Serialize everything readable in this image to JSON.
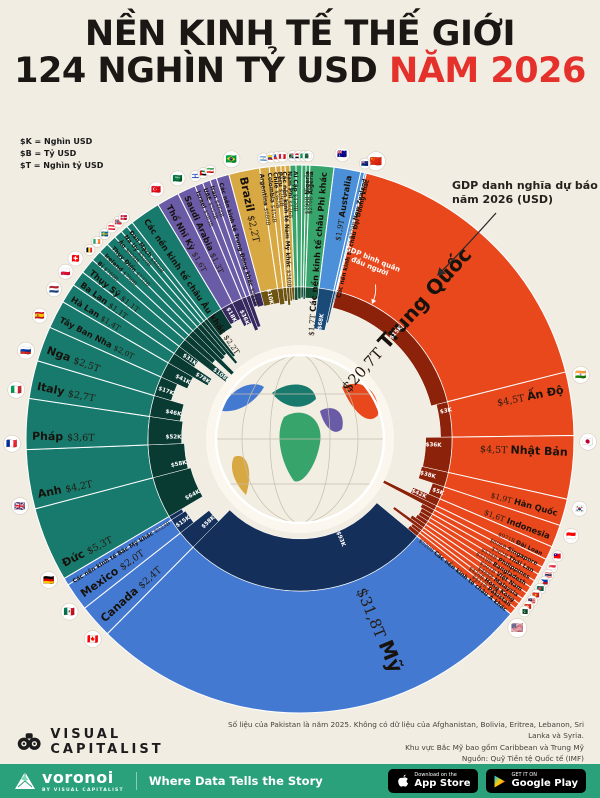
{
  "title": {
    "line1": "NỀN KINH TẾ THẾ GIỚI",
    "line2_black": "124 NGHÌN TỶ USD",
    "line2_red": "NĂM 2026"
  },
  "legend": {
    "lines": [
      "$K = Nghìn USD",
      "$B = Tỷ USD",
      "$T = Nghìn tỷ USD"
    ]
  },
  "annotations": {
    "gdp_note": "GDP danh nghĩa dự báo năm 2026 (USD)",
    "percap_note": "GDP bình quân đầu người"
  },
  "footer": {
    "brand": "VISUAL CAPITALIST",
    "notes": [
      "Số liệu của Pakistan là năm 2025. Không có dữ liệu của Afghanistan, Bolivia, Eritrea, Lebanon, Sri Lanka và Syria.",
      "Khu vực Bắc Mỹ bao gồm Caribbean và Trung Mỹ",
      "Nguồn: Quỹ Tiền tệ Quốc tế (IMF)"
    ]
  },
  "bottom_bar": {
    "brand": "voronoi",
    "byline": "BY VISUAL CAPITALIST",
    "slogan": "Where Data Tells the Story",
    "appstore": {
      "top": "Download on the",
      "bottom": "App Store"
    },
    "gplay": {
      "top": "GET IT ON",
      "bottom": "Google Play"
    }
  },
  "chart_data": {
    "type": "sunburst",
    "title": "Nền kinh tế thế giới 124 nghìn tỷ USD năm 2026",
    "total_display": "124 nghìn tỷ USD",
    "outer_ring_meaning": "GDP danh nghĩa dự báo năm 2026 (USD)",
    "inner_ring_meaning": "GDP bình quân đầu người",
    "units": {
      "K": "Nghìn USD",
      "B": "Tỷ USD",
      "T": "Nghìn tỷ USD"
    },
    "start_angle": 14,
    "regions": [
      {
        "id": "asia",
        "color": "#E8481C",
        "dark": "#8C2209",
        "countries": [
          {
            "id": "trung-quoc",
            "name": "Trung Quốc",
            "value": "$20,7T",
            "gdp": 20.7,
            "percap": "$15K",
            "pc": 15,
            "flag": "🇨🇳",
            "tier": 0
          },
          {
            "id": "an-do",
            "name": "Ấn Độ",
            "value": "$4,5T",
            "gdp": 4.5,
            "percap": "$3K",
            "pc": 3,
            "flag": "🇮🇳",
            "tier": 1
          },
          {
            "id": "nhat-ban",
            "name": "Nhật Bản",
            "value": "$4,5T",
            "gdp": 4.5,
            "percap": "$36K",
            "pc": 36,
            "flag": "🇯🇵",
            "tier": 1
          },
          {
            "id": "han-quoc",
            "name": "Hàn Quốc",
            "value": "$1,9T",
            "gdp": 1.9,
            "percap": "$38K",
            "pc": 38,
            "flag": "🇰🇷",
            "tier": 2
          },
          {
            "id": "indonesia",
            "name": "Indonesia",
            "value": "$1,6T",
            "gdp": 1.6,
            "percap": "$5K",
            "pc": 5,
            "flag": "🇮🇩",
            "tier": 2
          },
          {
            "id": "dai-loan",
            "name": "Đài Loan",
            "value": "$971B",
            "gdp": 0.971,
            "percap": "$42K",
            "pc": 42,
            "flag": "🇹🇼",
            "tier": 3
          },
          {
            "id": "singapore",
            "name": "Singapore",
            "value": "$606B",
            "gdp": 0.606,
            "pc": 113,
            "flag": "🇸🇬",
            "tier": 3
          },
          {
            "id": "thai-lan",
            "name": "Thái Lan",
            "value": "$562B",
            "gdp": 0.562,
            "pc": 8,
            "flag": "🇹🇭",
            "tier": 3
          },
          {
            "id": "philippines",
            "name": "Philippines",
            "value": "$534B",
            "gdp": 0.534,
            "pc": 4,
            "flag": "🇵🇭",
            "tier": 3
          },
          {
            "id": "bangladesh",
            "name": "Bangladesh",
            "value": "$519B",
            "gdp": 0.519,
            "pc": 3,
            "flag": "🇧🇩",
            "tier": 3
          },
          {
            "id": "viet-nam",
            "name": "Việt Nam",
            "value": "$501B",
            "gdp": 0.501,
            "pc": 5,
            "flag": "🇻🇳",
            "tier": 3
          },
          {
            "id": "malaysia",
            "name": "Malaysia",
            "value": "$488B",
            "gdp": 0.488,
            "pc": 14,
            "flag": "🇲🇾",
            "tier": 3
          },
          {
            "id": "hong-kong",
            "name": "Hong Kong",
            "value": "$426B",
            "gdp": 0.426,
            "pc": 57,
            "flag": "🇭🇰",
            "tier": 3
          },
          {
            "id": "pakistan",
            "name": "Pakistan",
            "value": "$411B",
            "gdp": 0.411,
            "pc": 2,
            "flag": "🇵🇰",
            "tier": 3
          },
          {
            "id": "asia-khac",
            "name": "Các nền kinh tế châu Á khác",
            "value": "$520B",
            "gdp": 0.52,
            "pc": 4,
            "tier": 3
          }
        ]
      },
      {
        "id": "north-america",
        "color": "#4479D1",
        "dark": "#14305A",
        "countries": [
          {
            "id": "my",
            "name": "Mỹ",
            "value": "$31,8T",
            "gdp": 31.8,
            "percap": "$93K",
            "pc": 93,
            "flag": "🇺🇸",
            "tier": 0
          },
          {
            "id": "canada",
            "name": "Canada",
            "value": "$2,4T",
            "gdp": 2.4,
            "percap": "$58K",
            "pc": 58,
            "flag": "🇨🇦",
            "tier": 1
          },
          {
            "id": "mexico",
            "name": "Mexico",
            "value": "$2,0T",
            "gdp": 2.0,
            "percap": "$15K",
            "pc": 15,
            "flag": "🇲🇽",
            "tier": 1
          },
          {
            "id": "bac-my-khac",
            "name": "Các nền kinh tế Bắc Mỹ khác",
            "value": "$523B",
            "gdp": 0.523,
            "pc": 10,
            "tier": 3
          }
        ]
      },
      {
        "id": "europe",
        "color": "#177A6D",
        "dark": "#0A3B33",
        "countries": [
          {
            "id": "duc",
            "name": "Đức",
            "value": "$5,3T",
            "gdp": 5.3,
            "percap": "$64K",
            "pc": 64,
            "flag": "🇩🇪",
            "tier": 1
          },
          {
            "id": "anh",
            "name": "Anh",
            "value": "$4,2T",
            "gdp": 4.2,
            "percap": "$58K",
            "pc": 58,
            "flag": "🇬🇧",
            "tier": 1
          },
          {
            "id": "phap",
            "name": "Pháp",
            "value": "$3,6T",
            "gdp": 3.6,
            "percap": "$52K",
            "pc": 52,
            "flag": "🇫🇷",
            "tier": 1
          },
          {
            "id": "italy",
            "name": "Italy",
            "value": "$2,7T",
            "gdp": 2.7,
            "percap": "$46K",
            "pc": 46,
            "flag": "🇮🇹",
            "tier": 1
          },
          {
            "id": "nga",
            "name": "Nga",
            "value": "$2,5T",
            "gdp": 2.5,
            "percap": "$17K",
            "pc": 17,
            "flag": "🇷🇺",
            "tier": 1
          },
          {
            "id": "tay-ban-nha",
            "name": "Tây Ban Nha",
            "value": "$2,0T",
            "gdp": 2.0,
            "percap": "$41K",
            "pc": 41,
            "flag": "🇪🇸",
            "tier": 2
          },
          {
            "id": "ha-lan",
            "name": "Hà Lan",
            "value": "$1,4T",
            "gdp": 1.4,
            "percap": "$78K",
            "pc": 78,
            "flag": "🇳🇱",
            "tier": 2
          },
          {
            "id": "ba-lan",
            "name": "Ba Lan",
            "value": "$1,1T",
            "gdp": 1.1,
            "percap": "$31K",
            "pc": 31,
            "flag": "🇵🇱",
            "tier": 2
          },
          {
            "id": "thuy-sy",
            "name": "Thụy Sỹ",
            "value": "$1,1T",
            "gdp": 1.1,
            "percap": "$108K",
            "pc": 108,
            "flag": "🇨🇭",
            "tier": 2
          },
          {
            "id": "bi",
            "name": "Bỉ",
            "value": "$760B",
            "gdp": 0.76,
            "pc": 58,
            "flag": "🇧🇪",
            "tier": 3
          },
          {
            "id": "ireland",
            "name": "Ireland",
            "value": "$750B",
            "gdp": 0.75,
            "pc": 135,
            "flag": "🇮🇪",
            "tier": 3
          },
          {
            "id": "thuy-dien",
            "name": "Thụy Điển",
            "value": "$732B",
            "gdp": 0.732,
            "pc": 68,
            "flag": "🇸🇪",
            "tier": 3
          },
          {
            "id": "ao",
            "name": "Áo",
            "value": "$604B",
            "gdp": 0.604,
            "pc": 65,
            "flag": "🇦🇹",
            "tier": 3
          },
          {
            "id": "na-uy",
            "name": "Na Uy",
            "value": "$520B",
            "gdp": 0.52,
            "pc": 95,
            "flag": "🇳🇴",
            "tier": 3
          },
          {
            "id": "dan-mach",
            "name": "Đan Mạch",
            "value": "$460B",
            "gdp": 0.46,
            "pc": 80,
            "flag": "🇩🇰",
            "tier": 3
          },
          {
            "id": "chau-au-khac",
            "name": "Các nền kinh tế châu Âu khác",
            "value": "$2,2T",
            "gdp": 2.2,
            "pc": 25,
            "tier": 2
          }
        ]
      },
      {
        "id": "middle-east",
        "color": "#6A5BA6",
        "dark": "#37295F",
        "countries": [
          {
            "id": "tho-nhi-ky",
            "name": "Thổ Nhĩ Kỳ",
            "value": "$1,6T",
            "gdp": 1.6,
            "percap": "$18K",
            "pc": 18,
            "flag": "🇹🇷",
            "tier": 2
          },
          {
            "id": "saudi-arabia",
            "name": "Saudi Arabia",
            "value": "$1,3T",
            "gdp": 1.3,
            "percap": "$36K",
            "pc": 36,
            "flag": "🇸🇦",
            "tier": 2
          },
          {
            "id": "israel",
            "name": "Israel",
            "value": "$583B",
            "gdp": 0.583,
            "pc": 55,
            "flag": "🇮🇱",
            "tier": 3
          },
          {
            "id": "uae",
            "name": "UAE",
            "value": "$552B",
            "gdp": 0.552,
            "pc": 50,
            "flag": "🇦🇪",
            "tier": 3
          },
          {
            "id": "iran",
            "name": "Iran",
            "value": "$464B",
            "gdp": 0.464,
            "pc": 5,
            "flag": "🇮🇷",
            "tier": 3
          },
          {
            "id": "trung-dong-khac",
            "name": "Các nền kinh tế Trung Đông khác",
            "value": "$911B",
            "gdp": 0.911,
            "pc": 8,
            "tier": 3
          }
        ]
      },
      {
        "id": "south-america",
        "color": "#D8A842",
        "dark": "#6E5413",
        "countries": [
          {
            "id": "brazil",
            "name": "Brazil",
            "value": "$2,2T",
            "gdp": 2.2,
            "percap": "$10K",
            "pc": 10,
            "flag": "🇧🇷",
            "tier": 1
          },
          {
            "id": "argentina",
            "name": "Argentina",
            "value": "$680B",
            "gdp": 0.68,
            "pc": 14,
            "flag": "🇦🇷",
            "tier": 3
          },
          {
            "id": "colombia",
            "name": "Colombia",
            "value": "$452B",
            "gdp": 0.452,
            "pc": 8,
            "flag": "🇨🇴",
            "tier": 3
          },
          {
            "id": "chile",
            "name": "Chile",
            "value": "$365B",
            "gdp": 0.365,
            "pc": 17,
            "flag": "🇨🇱",
            "tier": 3
          },
          {
            "id": "peru",
            "name": "Peru",
            "value": "$295B",
            "gdp": 0.295,
            "pc": 8,
            "flag": "🇵🇪",
            "tier": 3
          },
          {
            "id": "nam-my-khac",
            "name": "Các nền kinh tế Nam Mỹ khác",
            "value": "$340B",
            "gdp": 0.34,
            "pc": 6,
            "tier": 3
          }
        ]
      },
      {
        "id": "africa",
        "color": "#37A46C",
        "dark": "#135237",
        "countries": [
          {
            "id": "nam-phi",
            "name": "Nam Phi",
            "value": "$426B",
            "gdp": 0.426,
            "pc": 7,
            "flag": "🇿🇦",
            "tier": 3
          },
          {
            "id": "ai-cap",
            "name": "Ai Cập",
            "value": "$420B",
            "gdp": 0.42,
            "pc": 4,
            "flag": "🇪🇬",
            "tier": 3
          },
          {
            "id": "nigeria",
            "name": "Nigeria",
            "value": "$290B",
            "gdp": 0.29,
            "pc": 1.5,
            "flag": "🇳🇬",
            "tier": 3
          },
          {
            "id": "algeria",
            "name": "Algeria",
            "value": "$270B",
            "gdp": 0.27,
            "pc": 5,
            "flag": "🇩🇿",
            "tier": 3
          },
          {
            "id": "chau-phi-khac",
            "name": "Các nền kinh tế châu Phi khác",
            "value": "$1,7T",
            "gdp": 1.7,
            "pc": 2,
            "tier": 2
          }
        ]
      },
      {
        "id": "oceania",
        "color": "#4B90D8",
        "dark": "#1A4B78",
        "countries": [
          {
            "id": "australia",
            "name": "Australia",
            "value": "$1,9T",
            "gdp": 1.9,
            "percap": "$68K",
            "pc": 68,
            "flag": "🇦🇺",
            "tier": 2
          },
          {
            "id": "new-zealand",
            "name": "New Zealand",
            "value": "$270B",
            "gdp": 0.27,
            "pc": 50,
            "flag": "🇳🇿",
            "tier": 3
          },
          {
            "id": "dai-duong-khac",
            "name": "Các nền kinh tế châu Đại Dương khác",
            "gdp": 0.12,
            "pc": 4,
            "tier": 3
          }
        ]
      }
    ]
  }
}
